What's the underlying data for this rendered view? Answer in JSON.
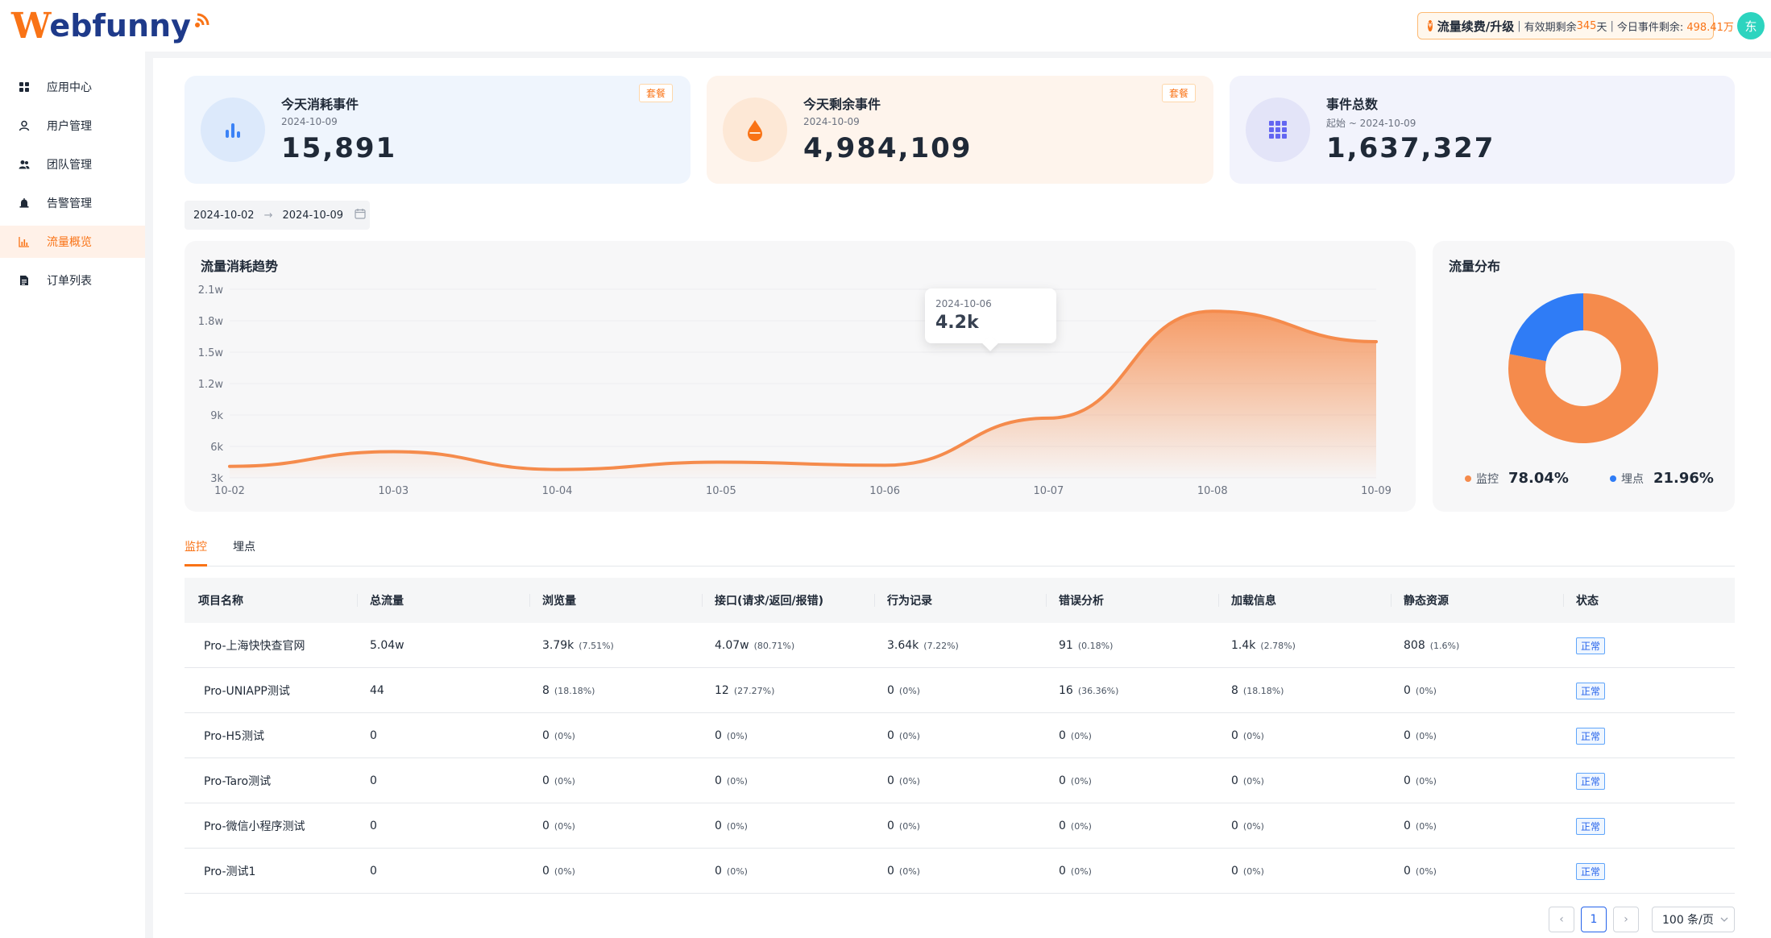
{
  "header": {
    "logo_w": "W",
    "logo_rest": "ebfunny",
    "renew_title": "流量续费/升级",
    "validity_prefix": "有效期剩余",
    "validity_days": "345",
    "validity_suffix": "天",
    "today_prefix": "今日事件剩余:",
    "today_value": "498.41万",
    "avatar_text": "东"
  },
  "sidebar": {
    "items": [
      {
        "label": "应用中心",
        "icon": "apps-grid-icon"
      },
      {
        "label": "用户管理",
        "icon": "user-icon"
      },
      {
        "label": "团队管理",
        "icon": "team-icon"
      },
      {
        "label": "告警管理",
        "icon": "alarm-bell-icon"
      },
      {
        "label": "流量概览",
        "icon": "bar-chart-icon"
      },
      {
        "label": "订单列表",
        "icon": "document-icon"
      }
    ],
    "active_index": 4
  },
  "stats": [
    {
      "label": "今天消耗事件",
      "date": "2024-10-09",
      "value": "15,891",
      "tag": "套餐",
      "icon": "bar-chart-icon",
      "accent": "#3b82f6"
    },
    {
      "label": "今天剩余事件",
      "date": "2024-10-09",
      "value": "4,984,109",
      "tag": "套餐",
      "icon": "drop-icon",
      "accent": "#f97316"
    },
    {
      "label": "事件总数",
      "date": "起始 ~ 2024-10-09",
      "value": "1,637,327",
      "tag": "",
      "icon": "grid-icon",
      "accent": "#6366f1"
    }
  ],
  "date_range": {
    "start": "2024-10-02",
    "arrow": "→",
    "end": "2024-10-09"
  },
  "trend": {
    "title": "流量消耗趋势",
    "tooltip_date": "2024-10-06",
    "tooltip_value": "4.2k"
  },
  "distribution": {
    "title": "流量分布",
    "legend": [
      {
        "name": "监控",
        "pct": "78.04%",
        "color": "#f58b4c"
      },
      {
        "name": "埋点",
        "pct": "21.96%",
        "color": "#2f7cf6"
      }
    ]
  },
  "chart_data": [
    {
      "type": "area",
      "title": "流量消耗趋势",
      "x": [
        "10-02",
        "10-03",
        "10-04",
        "10-05",
        "10-06",
        "10-07",
        "10-08",
        "10-09"
      ],
      "y_ticks": [
        "3k",
        "6k",
        "9k",
        "1.2w",
        "1.5w",
        "1.8w",
        "2.1w"
      ],
      "ylim": [
        3000,
        21000
      ],
      "series": [
        {
          "values": [
            4100,
            5500,
            3800,
            4500,
            4200,
            8700,
            18900,
            16000
          ]
        }
      ]
    },
    {
      "type": "pie",
      "title": "流量分布",
      "labels": [
        "监控",
        "埋点"
      ],
      "values": [
        78.04,
        21.96
      ],
      "colors": [
        "#f58b4c",
        "#2f7cf6"
      ]
    }
  ],
  "tabs": [
    "监控",
    "埋点"
  ],
  "table": {
    "headers": [
      "项目名称",
      "总流量",
      "浏览量",
      "接口(请求/返回/报错)",
      "行为记录",
      "错误分析",
      "加载信息",
      "静态资源",
      "状态"
    ],
    "rows": [
      {
        "name": "Pro-上海快快查官网",
        "total": "5.04w",
        "pv": "3.79k",
        "pv_pct": "(7.51%)",
        "api": "4.07w",
        "api_pct": "(80.71%)",
        "behavior": "3.64k",
        "behavior_pct": "(7.22%)",
        "error": "91",
        "error_pct": "(0.18%)",
        "load": "1.4k",
        "load_pct": "(2.78%)",
        "static": "808",
        "static_pct": "(1.6%)",
        "status": "正常"
      },
      {
        "name": "Pro-UNIAPP测试",
        "total": "44",
        "pv": "8",
        "pv_pct": "(18.18%)",
        "api": "12",
        "api_pct": "(27.27%)",
        "behavior": "0",
        "behavior_pct": "(0%)",
        "error": "16",
        "error_pct": "(36.36%)",
        "load": "8",
        "load_pct": "(18.18%)",
        "static": "0",
        "static_pct": "(0%)",
        "status": "正常"
      },
      {
        "name": "Pro-H5测试",
        "total": "0",
        "pv": "0",
        "pv_pct": "(0%)",
        "api": "0",
        "api_pct": "(0%)",
        "behavior": "0",
        "behavior_pct": "(0%)",
        "error": "0",
        "error_pct": "(0%)",
        "load": "0",
        "load_pct": "(0%)",
        "static": "0",
        "static_pct": "(0%)",
        "status": "正常"
      },
      {
        "name": "Pro-Taro测试",
        "total": "0",
        "pv": "0",
        "pv_pct": "(0%)",
        "api": "0",
        "api_pct": "(0%)",
        "behavior": "0",
        "behavior_pct": "(0%)",
        "error": "0",
        "error_pct": "(0%)",
        "load": "0",
        "load_pct": "(0%)",
        "static": "0",
        "static_pct": "(0%)",
        "status": "正常"
      },
      {
        "name": "Pro-微信小程序测试",
        "total": "0",
        "pv": "0",
        "pv_pct": "(0%)",
        "api": "0",
        "api_pct": "(0%)",
        "behavior": "0",
        "behavior_pct": "(0%)",
        "error": "0",
        "error_pct": "(0%)",
        "load": "0",
        "load_pct": "(0%)",
        "static": "0",
        "static_pct": "(0%)",
        "status": "正常"
      },
      {
        "name": "Pro-测试1",
        "total": "0",
        "pv": "0",
        "pv_pct": "(0%)",
        "api": "0",
        "api_pct": "(0%)",
        "behavior": "0",
        "behavior_pct": "(0%)",
        "error": "0",
        "error_pct": "(0%)",
        "load": "0",
        "load_pct": "(0%)",
        "static": "0",
        "static_pct": "(0%)",
        "status": "正常"
      }
    ]
  },
  "pagination": {
    "prev": "‹",
    "current": "1",
    "next": "›",
    "page_size": "100 条/页"
  }
}
